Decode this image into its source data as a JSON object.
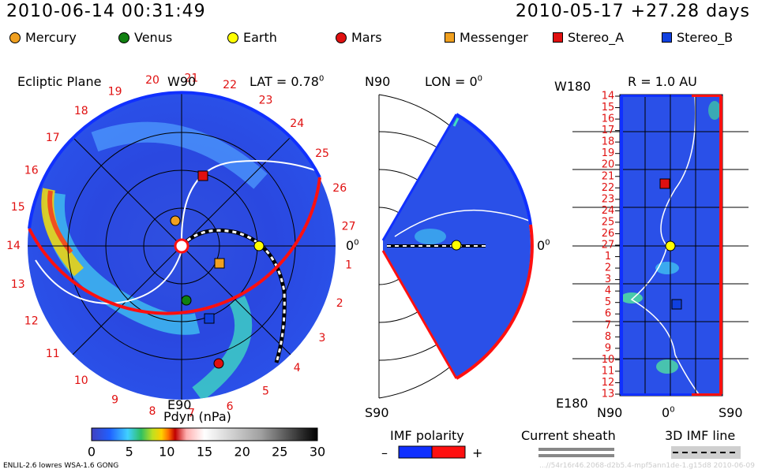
{
  "header": {
    "datetime": "2010-06-14 00:31:49",
    "reference": "2010-05-17 +27.28 days"
  },
  "legend": [
    {
      "name": "Mercury",
      "color": "#f0a020",
      "shape": "dot"
    },
    {
      "name": "Venus",
      "color": "#108010",
      "shape": "dot"
    },
    {
      "name": "Earth",
      "color": "#ffff00",
      "shape": "dot"
    },
    {
      "name": "Mars",
      "color": "#e01010",
      "shape": "dot"
    },
    {
      "name": "Messenger",
      "color": "#f0a020",
      "shape": "square"
    },
    {
      "name": "Stereo_A",
      "color": "#e01010",
      "shape": "square"
    },
    {
      "name": "Stereo_B",
      "color": "#1040e0",
      "shape": "square"
    }
  ],
  "panels": {
    "ecliptic": {
      "title": "Ecliptic Plane",
      "top_label": "W90",
      "bottom_label": "E90",
      "right_label": "0",
      "lat_label": "LAT = 0.78",
      "deg": "0"
    },
    "meridional": {
      "top_label": "N90",
      "bottom_label": "S90",
      "lon_label": "LON = 0",
      "deg": "0",
      "right_label": "0"
    },
    "radial": {
      "r_label": "R = 1.0 AU",
      "top_label": "W180",
      "bottom_label": "E180",
      "x_left": "N90",
      "x_mid": "0",
      "x_right": "S90",
      "deg": "0"
    }
  },
  "colorbar": {
    "title": "Pdyn (nPa)",
    "ticks": [
      "0",
      "5",
      "10",
      "15",
      "20",
      "25",
      "30"
    ]
  },
  "imf": {
    "title": "IMF polarity",
    "minus": "–",
    "plus": "+"
  },
  "sheath": {
    "title": "Current sheath"
  },
  "imf3d": {
    "title": "3D IMF line"
  },
  "footer": {
    "left": "ENLIL-2.6 lowres WSA-1.6 GONG",
    "right": "...//54r16r46.2068-d2b5.4-mpf5ann1de-1.g15d8   2010-06-09"
  },
  "chart_data": {
    "type": "other",
    "carrington_rotation_labels": [
      "1",
      "2",
      "3",
      "4",
      "5",
      "6",
      "7",
      "8",
      "9",
      "10",
      "11",
      "12",
      "13",
      "14",
      "15",
      "16",
      "17",
      "18",
      "19",
      "20",
      "21",
      "22",
      "23",
      "24",
      "25",
      "26",
      "27"
    ],
    "radial_day_labels": [
      "14",
      "15",
      "16",
      "17",
      "18",
      "19",
      "20",
      "21",
      "22",
      "23",
      "24",
      "25",
      "26",
      "27",
      "1",
      "2",
      "3",
      "4",
      "5",
      "6",
      "7",
      "8",
      "9",
      "10",
      "11",
      "12",
      "13"
    ],
    "colorbar_range": [
      0,
      30
    ],
    "colorbar_units": "nPa"
  }
}
